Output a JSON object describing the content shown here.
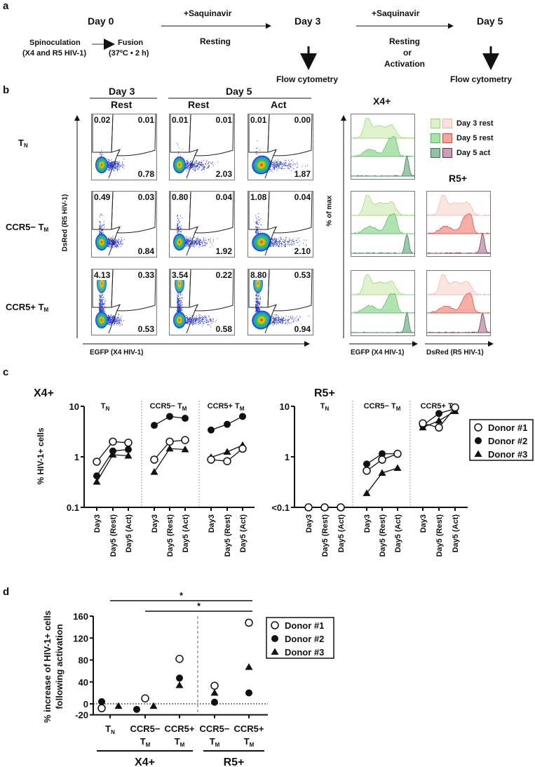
{
  "panel_labels": {
    "a": "a",
    "b": "b",
    "c": "c",
    "d": "d"
  },
  "timeline": {
    "day0": "Day 0",
    "spinoculation": "Spinoculation",
    "spinoculation_sub": "(X4 and R5 HIV-1)",
    "fusion": "Fusion",
    "fusion_sub": "(37ºC • 2 h)",
    "saquinavir_1": "+Saquinavir",
    "resting_1": "Resting",
    "day3": "Day 3",
    "flow_1": "Flow cytometry",
    "saquinavir_2": "+Saquinavir",
    "resting_2": "Resting",
    "or": "or",
    "activation": "Activation",
    "day5": "Day 5",
    "flow_2": "Flow cytometry"
  },
  "flow": {
    "header_day3": "Day 3",
    "header_day5": "Day 5",
    "col_rest_1": "Rest",
    "col_rest_2": "Rest",
    "col_act": "Act",
    "y_axis_label": "DsRed (R5 HIV-1)",
    "x_axis_label": "EGFP (X4 HIV-1)",
    "rows": [
      {
        "label": "T",
        "sub": "N",
        "plots": [
          {
            "ul": "0.02",
            "ur": "0.01",
            "lr": "0.78"
          },
          {
            "ul": "0.01",
            "ur": "0.01",
            "lr": "2.03"
          },
          {
            "ul": "0.01",
            "ur": "0.00",
            "lr": "1.87"
          }
        ]
      },
      {
        "label": "CCR5− T",
        "sub": "M",
        "plots": [
          {
            "ul": "0.49",
            "ur": "0.03",
            "lr": "0.84"
          },
          {
            "ul": "0.80",
            "ur": "0.04",
            "lr": "1.92"
          },
          {
            "ul": "1.08",
            "ur": "0.04",
            "lr": "2.10"
          }
        ]
      },
      {
        "label": "CCR5+ T",
        "sub": "M",
        "plots": [
          {
            "ul": "4.13",
            "ur": "0.33",
            "lr": "0.53"
          },
          {
            "ul": "3.54",
            "ur": "0.22",
            "lr": "0.58"
          },
          {
            "ul": "8.80",
            "ur": "0.53",
            "lr": "0.94"
          }
        ]
      }
    ]
  },
  "histograms": {
    "x4_title": "X4+",
    "r5_title": "R5+",
    "y_axis_label": "% of max",
    "x4_axis_label": "EGFP (X4 HIV-1)",
    "r5_axis_label": "DsRed (R5 HIV-1)",
    "legend": [
      "Day 3 rest",
      "Day 5 rest",
      "Day 5 act"
    ],
    "colors": {
      "green": [
        "#dcf1c8",
        "#a9e0a9",
        "#93c2a2"
      ],
      "green_stroke": [
        "#9ad46a",
        "#47bb55",
        "#2d7a48"
      ],
      "red": [
        "#fbe2de",
        "#f4a59c",
        "#c7a0b6"
      ],
      "red_stroke": [
        "#f0b3a9",
        "#dd4236",
        "#752046"
      ]
    }
  },
  "chart_data": [
    {
      "type": "line",
      "title": "X4+",
      "ylabel": "% HIV-1+ cells",
      "yscale": "log",
      "ylim": [
        0.1,
        10
      ],
      "yticks": [
        "0.1",
        "1",
        "10"
      ],
      "groups": [
        "T|N",
        "CCR5− T|M",
        "CCR5+ T|M"
      ],
      "categories": [
        "Day3",
        "Day5 (Rest)",
        "Day5 (Act)"
      ],
      "series": [
        {
          "name": "Donor #1",
          "marker": "open-circle",
          "values": [
            [
              0.8,
              2.0,
              1.9
            ],
            [
              0.88,
              2.0,
              2.15
            ],
            [
              0.88,
              0.82,
              1.45
            ]
          ]
        },
        {
          "name": "Donor #2",
          "marker": "filled-circle",
          "values": [
            [
              0.42,
              1.3,
              1.4
            ],
            [
              4.2,
              6.3,
              5.8
            ],
            [
              3.4,
              4.4,
              6.3
            ]
          ]
        },
        {
          "name": "Donor #3",
          "marker": "triangle",
          "values": [
            [
              0.32,
              1.1,
              1.05
            ],
            [
              0.5,
              1.45,
              1.4
            ],
            [
              0.98,
              1.25,
              1.7
            ]
          ]
        }
      ]
    },
    {
      "type": "line",
      "title": "R5+",
      "ylabel": "",
      "yscale": "log",
      "ylim": [
        0.1,
        10
      ],
      "yticks": [
        "<0.1",
        "1",
        "10"
      ],
      "groups": [
        "T|N",
        "CCR5− T|M",
        "CCR5+ T|M"
      ],
      "categories": [
        "Day3",
        "Day5 (Rest)",
        "Day5 (Act)"
      ],
      "series": [
        {
          "name": "Donor #1",
          "marker": "open-circle",
          "values": [
            [
              0.1,
              0.1,
              0.1
            ],
            [
              0.53,
              0.88,
              1.15
            ],
            [
              4.6,
              3.8,
              9.5
            ]
          ]
        },
        {
          "name": "Donor #2",
          "marker": "filled-circle",
          "values": [
            [
              0.1,
              0.1,
              0.1
            ],
            [
              0.72,
              1.15,
              1.15
            ],
            [
              4.2,
              7.2,
              9.0
            ]
          ]
        },
        {
          "name": "Donor #3",
          "marker": "triangle",
          "values": [
            [
              0.1,
              0.1,
              0.1
            ],
            [
              0.19,
              0.48,
              0.6
            ],
            [
              3.8,
              5.2,
              8.0
            ]
          ]
        }
      ],
      "legend": [
        "Donor #1",
        "Donor #2",
        "Donor #3"
      ],
      "legend_position": "right"
    },
    {
      "type": "scatter",
      "ylabel": [
        "% increase of HIV-1+ cells",
        "following activation"
      ],
      "ylim": [
        -20,
        160
      ],
      "yticks": [
        "-20",
        "0",
        "40",
        "80",
        "120",
        "160"
      ],
      "categories": [
        "T|N",
        "CCR5−|T|M",
        "CCR5+|T|M",
        "CCR5−|T|M",
        "CCR5+|T|M"
      ],
      "category_groups": [
        {
          "label": "X4+",
          "span": [
            0,
            2
          ]
        },
        {
          "label": "R5+",
          "span": [
            3,
            4
          ]
        }
      ],
      "series": [
        {
          "name": "Donor #1",
          "marker": "open-circle",
          "values": [
            -8,
            10,
            82,
            33,
            148
          ]
        },
        {
          "name": "Donor #2",
          "marker": "filled-circle",
          "values": [
            4,
            -10,
            47,
            3,
            20
          ]
        },
        {
          "name": "Donor #3",
          "marker": "triangle",
          "values": [
            -4,
            -4,
            34,
            20,
            67
          ]
        }
      ],
      "significance": [
        {
          "from": 0,
          "to": 4,
          "label": "*"
        },
        {
          "from": 1,
          "to": 4,
          "label": "*"
        }
      ],
      "reference_line": 0,
      "legend": [
        "Donor #1",
        "Donor #2",
        "Donor #3"
      ],
      "legend_position": "right"
    }
  ]
}
